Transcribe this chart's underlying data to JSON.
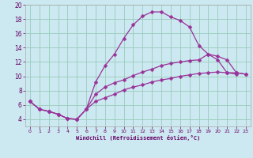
{
  "bg_color": "#cce8f0",
  "line_color": "#993399",
  "marker": "D",
  "marker_size": 2.5,
  "xlabel": "Windchill (Refroidissement éolien,°C)",
  "xlim": [
    -0.5,
    23.5
  ],
  "ylim": [
    3.0,
    20.0
  ],
  "xticks": [
    0,
    1,
    2,
    3,
    4,
    5,
    6,
    7,
    8,
    9,
    10,
    11,
    12,
    13,
    14,
    15,
    16,
    17,
    18,
    19,
    20,
    21,
    22,
    23
  ],
  "yticks": [
    4,
    6,
    8,
    10,
    12,
    14,
    16,
    18,
    20
  ],
  "grid_color": "#99ccbb",
  "tick_color": "#660066",
  "curves": [
    {
      "x": [
        0,
        1,
        2,
        3,
        4,
        5,
        6,
        7,
        8,
        9,
        10,
        11,
        12,
        13,
        14,
        15,
        16,
        17,
        18,
        19,
        20,
        21,
        22
      ],
      "y": [
        6.5,
        5.4,
        5.1,
        4.7,
        4.1,
        4.0,
        5.4,
        9.2,
        11.5,
        13.1,
        15.3,
        17.2,
        18.4,
        19.0,
        19.0,
        18.3,
        17.8,
        16.9,
        14.3,
        13.1,
        12.3,
        10.5,
        10.3
      ]
    },
    {
      "x": [
        0,
        1,
        2,
        3,
        4,
        5,
        6,
        7,
        8,
        9,
        10,
        11,
        12,
        13,
        14,
        15,
        16,
        17,
        18,
        19,
        20,
        21,
        22,
        23
      ],
      "y": [
        6.5,
        5.4,
        5.1,
        4.7,
        4.1,
        4.0,
        5.4,
        7.5,
        8.5,
        9.1,
        9.5,
        10.1,
        10.6,
        11.0,
        11.5,
        11.8,
        12.0,
        12.2,
        12.3,
        13.1,
        12.8,
        12.3,
        10.5,
        10.3
      ]
    },
    {
      "x": [
        0,
        1,
        2,
        3,
        4,
        5,
        6,
        7,
        8,
        9,
        10,
        11,
        12,
        13,
        14,
        15,
        16,
        17,
        18,
        19,
        20,
        21,
        22,
        23
      ],
      "y": [
        6.5,
        5.4,
        5.1,
        4.7,
        4.1,
        4.0,
        5.4,
        6.5,
        7.0,
        7.5,
        8.1,
        8.5,
        8.8,
        9.2,
        9.5,
        9.7,
        10.0,
        10.2,
        10.4,
        10.5,
        10.6,
        10.5,
        10.5,
        10.3
      ]
    }
  ]
}
